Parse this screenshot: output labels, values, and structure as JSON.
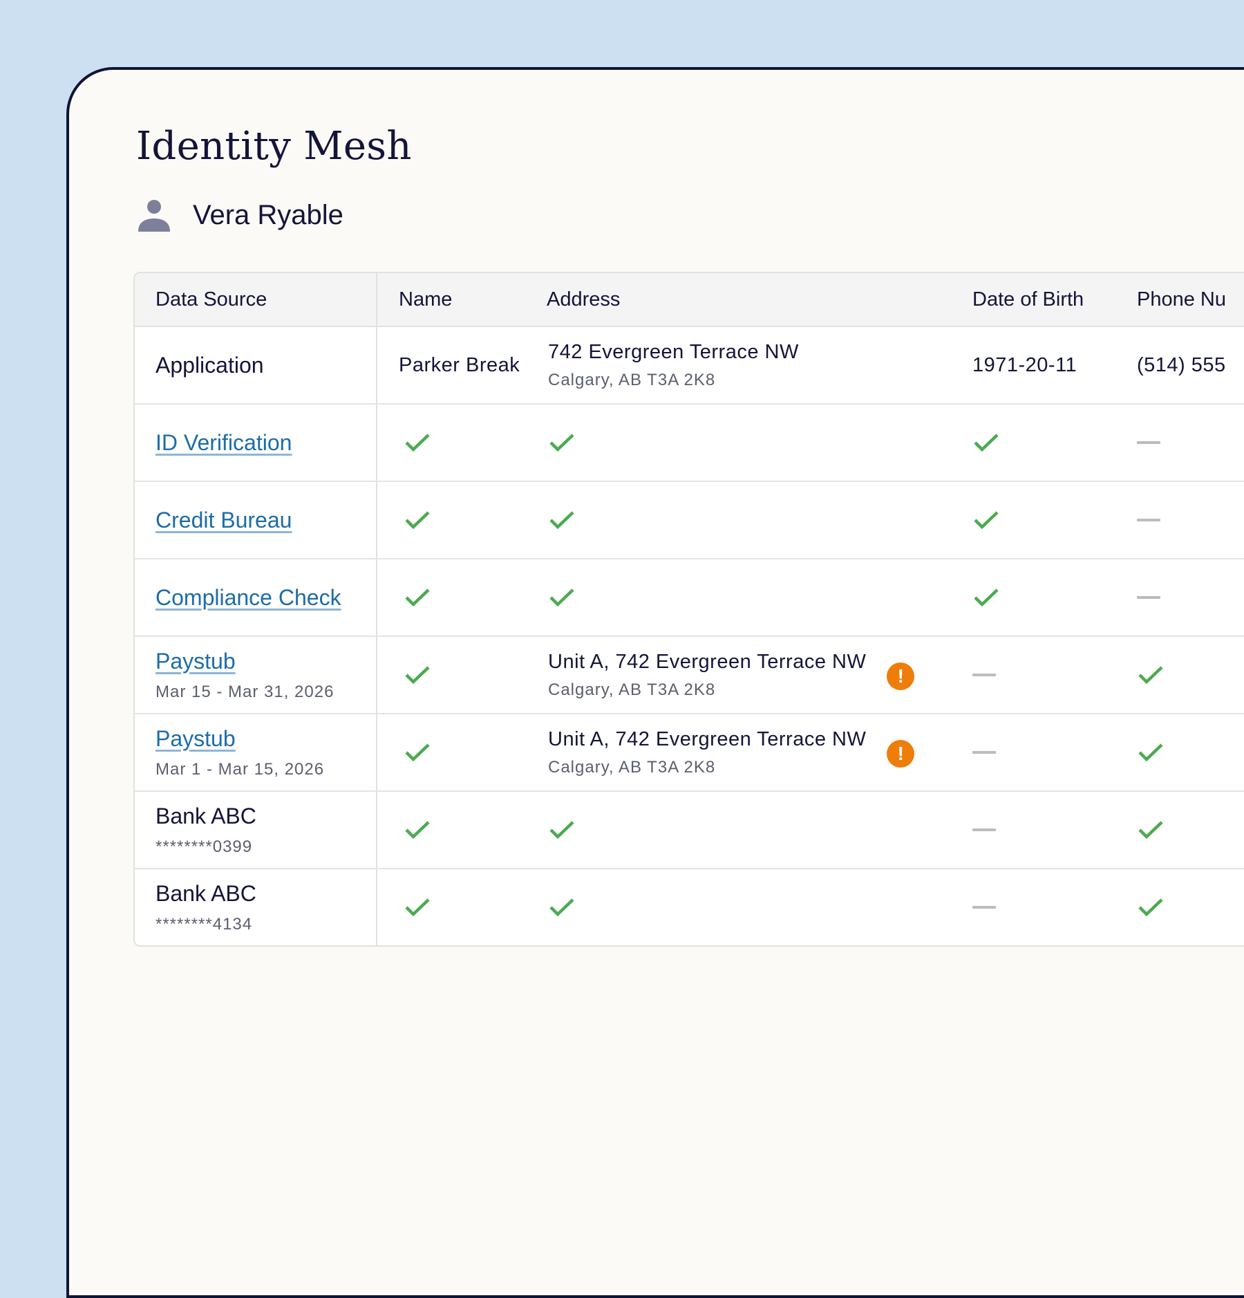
{
  "app": {
    "title": "Identity Mesh",
    "user": {
      "name": "Vera Ryable",
      "icon": "person-icon"
    }
  },
  "colors": {
    "background": "#cde0f2",
    "frame_border": "#0f1538",
    "check": "#4caa50",
    "warning": "#ef7d0a",
    "link": "#1c6ca8",
    "dash": "#bcbcbc"
  },
  "table": {
    "columns": [
      "Data Source",
      "Name",
      "Address",
      "Date of Birth",
      "Phone Nu"
    ],
    "rows": [
      {
        "source": "Application",
        "source_link": false,
        "source_sub": "",
        "name": {
          "type": "text",
          "value": "Parker Break"
        },
        "address": {
          "type": "text",
          "line1": "742 Evergreen Terrace NW",
          "line2": "Calgary, AB T3A 2K8",
          "warning": false
        },
        "dob": {
          "type": "text",
          "value": "1971-20-11"
        },
        "phone": {
          "type": "text",
          "value": "(514) 555"
        }
      },
      {
        "source": "ID Verification",
        "source_link": true,
        "source_sub": "",
        "name": {
          "type": "check"
        },
        "address": {
          "type": "check"
        },
        "dob": {
          "type": "check"
        },
        "phone": {
          "type": "dash"
        }
      },
      {
        "source": "Credit Bureau",
        "source_link": true,
        "source_sub": "",
        "name": {
          "type": "check"
        },
        "address": {
          "type": "check"
        },
        "dob": {
          "type": "check"
        },
        "phone": {
          "type": "dash"
        }
      },
      {
        "source": "Compliance Check",
        "source_link": true,
        "source_sub": "",
        "name": {
          "type": "check"
        },
        "address": {
          "type": "check"
        },
        "dob": {
          "type": "check"
        },
        "phone": {
          "type": "dash"
        }
      },
      {
        "source": "Paystub",
        "source_link": true,
        "source_sub": "Mar 15 - Mar 31, 2026",
        "name": {
          "type": "check"
        },
        "address": {
          "type": "text",
          "line1": "Unit A, 742 Evergreen Terrace NW",
          "line2": "Calgary, AB T3A 2K8",
          "warning": true,
          "warning_glyph": "!"
        },
        "dob": {
          "type": "dash"
        },
        "phone": {
          "type": "check"
        }
      },
      {
        "source": "Paystub",
        "source_link": true,
        "source_sub": "Mar 1 - Mar 15, 2026",
        "name": {
          "type": "check"
        },
        "address": {
          "type": "text",
          "line1": "Unit A, 742 Evergreen Terrace NW",
          "line2": "Calgary, AB T3A 2K8",
          "warning": true,
          "warning_glyph": "!"
        },
        "dob": {
          "type": "dash"
        },
        "phone": {
          "type": "check"
        }
      },
      {
        "source": "Bank ABC",
        "source_link": false,
        "source_sub": "********0399",
        "name": {
          "type": "check"
        },
        "address": {
          "type": "check"
        },
        "dob": {
          "type": "dash"
        },
        "phone": {
          "type": "check"
        }
      },
      {
        "source": "Bank ABC",
        "source_link": false,
        "source_sub": "********4134",
        "name": {
          "type": "check"
        },
        "address": {
          "type": "check"
        },
        "dob": {
          "type": "dash"
        },
        "phone": {
          "type": "check"
        }
      }
    ]
  }
}
